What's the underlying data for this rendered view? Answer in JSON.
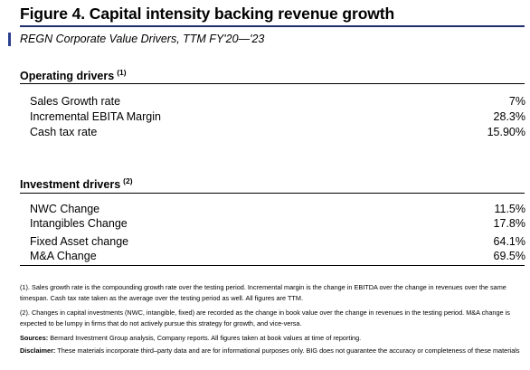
{
  "figure": {
    "title": "Figure 4. Capital intensity backing revenue growth",
    "subtitle": "REGN Corporate Value Drivers, TTM FY'20—'23"
  },
  "operating": {
    "title": "Operating drivers",
    "note_ref": "(1)",
    "rows": [
      {
        "label": "Sales Growth rate",
        "value": "7%"
      },
      {
        "label": "Incremental EBITA Margin",
        "value": "28.3%"
      },
      {
        "label": "Cash tax rate",
        "value": "15.90%"
      }
    ]
  },
  "investment": {
    "title": "Investment drivers",
    "note_ref": "(2)",
    "rows": [
      {
        "label": "NWC Change",
        "value": "11.5%"
      },
      {
        "label": "Intangibles Change",
        "value": "17.8%"
      },
      {
        "label": "Fixed Asset change",
        "value": "64.1%"
      },
      {
        "label": "M&A Change",
        "value": "69.5%"
      }
    ]
  },
  "footnotes": {
    "note1": "(1). Sales growth rate is the compounding growth rate over the testing period. Incremental margin is the change in EBITDA over the change in revenues over the same timespan. Cash tax rate taken as the average over the testing period as well. All figures are TTM.",
    "note2": "(2). Changes in capital investments (NWC, intangible, fixed) are recorded as the change in book value over the change in revenues in the testing period. M&A change is expected to be lumpy in firms that do not actively pursue this strategy for growth, and vice-versa.",
    "sources_label": "Sources:",
    "sources": "Bernard Investment Group analysis, Company reports. All figures taken at book values at time of reporting.",
    "disclaimer_label": "Disclaimer:",
    "disclaimer": "These materials incorporate third–party data and are for informational purposes only. BIG does not guarantee the accuracy or completeness of these materials"
  }
}
